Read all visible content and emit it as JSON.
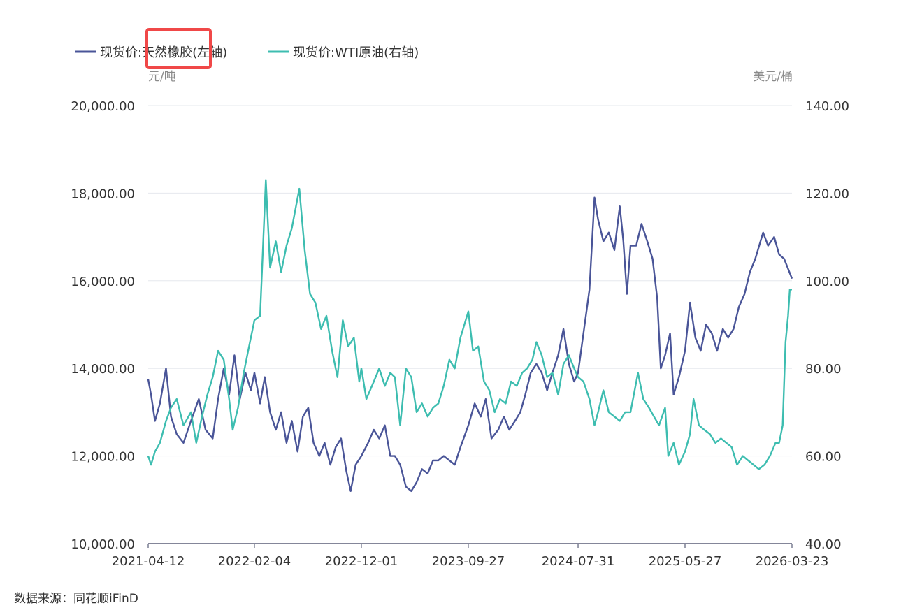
{
  "chart_data": {
    "type": "line",
    "legend": {
      "placement": "top-left",
      "items": [
        {
          "label": "现货价:天然橡胶(左轴)",
          "color": "#4a5598"
        },
        {
          "label": "现货价:WTI原油(右轴)",
          "color": "#3dbdb0"
        }
      ]
    },
    "highlight_color": "#f04848",
    "left_axis": {
      "unit": "元/吨",
      "ylim": [
        10000,
        20000
      ],
      "ticks": [
        "10,000.00",
        "12,000.00",
        "14,000.00",
        "16,000.00",
        "18,000.00",
        "20,000.00"
      ]
    },
    "right_axis": {
      "unit": "美元/桶",
      "ylim": [
        40,
        140
      ],
      "ticks": [
        "40.00",
        "60.00",
        "80.00",
        "100.00",
        "120.00",
        "140.00"
      ]
    },
    "x_ticks": [
      "2021-04-12",
      "2022-02-04",
      "2022-12-01",
      "2023-09-27",
      "2024-07-31",
      "2025-05-27",
      "2026-03-23"
    ],
    "grid": true,
    "series": [
      {
        "name": "现货价:天然橡胶(左轴)",
        "axis": "left",
        "color": "#4a5598",
        "points": [
          [
            "2021-04-12",
            13750
          ],
          [
            "2021-04-20",
            13400
          ],
          [
            "2021-05-01",
            12800
          ],
          [
            "2021-05-15",
            13200
          ],
          [
            "2021-06-01",
            14000
          ],
          [
            "2021-06-15",
            12900
          ],
          [
            "2021-07-01",
            12500
          ],
          [
            "2021-07-20",
            12300
          ],
          [
            "2021-08-10",
            12800
          ],
          [
            "2021-09-01",
            13300
          ],
          [
            "2021-09-20",
            12600
          ],
          [
            "2021-10-10",
            12400
          ],
          [
            "2021-10-25",
            13300
          ],
          [
            "2021-11-10",
            14000
          ],
          [
            "2021-11-25",
            13400
          ],
          [
            "2021-12-10",
            14300
          ],
          [
            "2021-12-25",
            13300
          ],
          [
            "2022-01-10",
            13900
          ],
          [
            "2022-01-25",
            13500
          ],
          [
            "2022-02-04",
            13900
          ],
          [
            "2022-02-20",
            13200
          ],
          [
            "2022-03-05",
            13800
          ],
          [
            "2022-03-20",
            13000
          ],
          [
            "2022-04-05",
            12600
          ],
          [
            "2022-04-20",
            13000
          ],
          [
            "2022-05-05",
            12300
          ],
          [
            "2022-05-20",
            12800
          ],
          [
            "2022-06-05",
            12100
          ],
          [
            "2022-06-20",
            12900
          ],
          [
            "2022-07-05",
            13100
          ],
          [
            "2022-07-20",
            12300
          ],
          [
            "2022-08-05",
            12000
          ],
          [
            "2022-08-20",
            12300
          ],
          [
            "2022-09-05",
            11800
          ],
          [
            "2022-09-20",
            12200
          ],
          [
            "2022-10-05",
            12400
          ],
          [
            "2022-10-20",
            11650
          ],
          [
            "2022-11-01",
            11200
          ],
          [
            "2022-11-15",
            11800
          ],
          [
            "2022-12-01",
            12000
          ],
          [
            "2022-12-20",
            12300
          ],
          [
            "2023-01-05",
            12600
          ],
          [
            "2023-01-20",
            12400
          ],
          [
            "2023-02-05",
            12700
          ],
          [
            "2023-02-20",
            12000
          ],
          [
            "2023-03-05",
            12000
          ],
          [
            "2023-03-20",
            11800
          ],
          [
            "2023-04-05",
            11300
          ],
          [
            "2023-04-20",
            11200
          ],
          [
            "2023-05-05",
            11400
          ],
          [
            "2023-05-20",
            11700
          ],
          [
            "2023-06-05",
            11600
          ],
          [
            "2023-06-20",
            11900
          ],
          [
            "2023-07-05",
            11900
          ],
          [
            "2023-07-20",
            12000
          ],
          [
            "2023-08-05",
            11900
          ],
          [
            "2023-08-20",
            11800
          ],
          [
            "2023-09-05",
            12200
          ],
          [
            "2023-09-27",
            12700
          ],
          [
            "2023-10-15",
            13200
          ],
          [
            "2023-11-01",
            12900
          ],
          [
            "2023-11-15",
            13300
          ],
          [
            "2023-12-01",
            12400
          ],
          [
            "2023-12-20",
            12600
          ],
          [
            "2024-01-05",
            12900
          ],
          [
            "2024-01-20",
            12600
          ],
          [
            "2024-02-05",
            12800
          ],
          [
            "2024-02-20",
            13000
          ],
          [
            "2024-03-05",
            13400
          ],
          [
            "2024-03-20",
            13900
          ],
          [
            "2024-04-05",
            14100
          ],
          [
            "2024-04-20",
            13900
          ],
          [
            "2024-05-05",
            13500
          ],
          [
            "2024-05-20",
            13900
          ],
          [
            "2024-06-05",
            14300
          ],
          [
            "2024-06-20",
            14900
          ],
          [
            "2024-07-05",
            14100
          ],
          [
            "2024-07-20",
            13700
          ],
          [
            "2024-07-31",
            13900
          ],
          [
            "2024-08-15",
            14800
          ],
          [
            "2024-09-01",
            15800
          ],
          [
            "2024-09-15",
            17900
          ],
          [
            "2024-09-25",
            17400
          ],
          [
            "2024-10-10",
            16900
          ],
          [
            "2024-10-25",
            17100
          ],
          [
            "2024-11-10",
            16700
          ],
          [
            "2024-11-25",
            17700
          ],
          [
            "2024-12-05",
            16900
          ],
          [
            "2024-12-15",
            15700
          ],
          [
            "2024-12-25",
            16800
          ],
          [
            "2025-01-10",
            16800
          ],
          [
            "2025-01-25",
            17300
          ],
          [
            "2025-02-10",
            16900
          ],
          [
            "2025-02-25",
            16500
          ],
          [
            "2025-03-10",
            15600
          ],
          [
            "2025-03-20",
            14000
          ],
          [
            "2025-04-01",
            14300
          ],
          [
            "2025-04-15",
            14800
          ],
          [
            "2025-04-25",
            13400
          ],
          [
            "2025-05-10",
            13800
          ],
          [
            "2025-05-27",
            14400
          ],
          [
            "2025-06-10",
            15500
          ],
          [
            "2025-06-25",
            14700
          ],
          [
            "2025-07-10",
            14400
          ],
          [
            "2025-07-25",
            15000
          ],
          [
            "2025-08-10",
            14800
          ],
          [
            "2025-08-25",
            14400
          ],
          [
            "2025-09-10",
            14900
          ],
          [
            "2025-09-25",
            14700
          ],
          [
            "2025-10-10",
            14900
          ],
          [
            "2025-10-25",
            15400
          ],
          [
            "2025-11-10",
            15700
          ],
          [
            "2025-11-25",
            16200
          ],
          [
            "2025-12-10",
            16500
          ],
          [
            "2026-01-01",
            17100
          ],
          [
            "2026-01-15",
            16800
          ],
          [
            "2026-02-01",
            17000
          ],
          [
            "2026-02-15",
            16600
          ],
          [
            "2026-03-01",
            16500
          ],
          [
            "2026-03-23",
            16050
          ]
        ]
      },
      {
        "name": "现货价:WTI原油(右轴)",
        "axis": "right",
        "color": "#3dbdb0",
        "points": [
          [
            "2021-04-12",
            60
          ],
          [
            "2021-04-20",
            58
          ],
          [
            "2021-05-01",
            61
          ],
          [
            "2021-05-15",
            63
          ],
          [
            "2021-06-01",
            68
          ],
          [
            "2021-06-15",
            71
          ],
          [
            "2021-07-01",
            73
          ],
          [
            "2021-07-20",
            67
          ],
          [
            "2021-08-10",
            70
          ],
          [
            "2021-08-25",
            63
          ],
          [
            "2021-09-10",
            69
          ],
          [
            "2021-09-25",
            74
          ],
          [
            "2021-10-10",
            78
          ],
          [
            "2021-10-25",
            84
          ],
          [
            "2021-11-10",
            82
          ],
          [
            "2021-11-25",
            73
          ],
          [
            "2021-12-05",
            66
          ],
          [
            "2021-12-20",
            71
          ],
          [
            "2022-01-05",
            79
          ],
          [
            "2022-01-20",
            85
          ],
          [
            "2022-02-04",
            91
          ],
          [
            "2022-02-20",
            92
          ],
          [
            "2022-03-08",
            123
          ],
          [
            "2022-03-20",
            103
          ],
          [
            "2022-04-05",
            109
          ],
          [
            "2022-04-20",
            102
          ],
          [
            "2022-05-05",
            108
          ],
          [
            "2022-05-20",
            112
          ],
          [
            "2022-06-10",
            121
          ],
          [
            "2022-06-25",
            107
          ],
          [
            "2022-07-10",
            97
          ],
          [
            "2022-07-25",
            95
          ],
          [
            "2022-08-10",
            89
          ],
          [
            "2022-08-25",
            92
          ],
          [
            "2022-09-10",
            84
          ],
          [
            "2022-09-25",
            78
          ],
          [
            "2022-10-10",
            91
          ],
          [
            "2022-10-25",
            85
          ],
          [
            "2022-11-10",
            87
          ],
          [
            "2022-11-25",
            77
          ],
          [
            "2022-12-01",
            80
          ],
          [
            "2022-12-15",
            73
          ],
          [
            "2023-01-05",
            77
          ],
          [
            "2023-01-20",
            80
          ],
          [
            "2023-02-05",
            76
          ],
          [
            "2023-02-20",
            79
          ],
          [
            "2023-03-05",
            78
          ],
          [
            "2023-03-20",
            67
          ],
          [
            "2023-04-05",
            80
          ],
          [
            "2023-04-20",
            78
          ],
          [
            "2023-05-05",
            70
          ],
          [
            "2023-05-20",
            72
          ],
          [
            "2023-06-05",
            69
          ],
          [
            "2023-06-20",
            71
          ],
          [
            "2023-07-05",
            72
          ],
          [
            "2023-07-20",
            76
          ],
          [
            "2023-08-05",
            82
          ],
          [
            "2023-08-20",
            80
          ],
          [
            "2023-09-05",
            87
          ],
          [
            "2023-09-27",
            93
          ],
          [
            "2023-10-10",
            84
          ],
          [
            "2023-10-25",
            85
          ],
          [
            "2023-11-10",
            77
          ],
          [
            "2023-11-25",
            75
          ],
          [
            "2023-12-10",
            70
          ],
          [
            "2023-12-25",
            73
          ],
          [
            "2024-01-10",
            72
          ],
          [
            "2024-01-25",
            77
          ],
          [
            "2024-02-10",
            76
          ],
          [
            "2024-02-25",
            79
          ],
          [
            "2024-03-10",
            80
          ],
          [
            "2024-03-25",
            82
          ],
          [
            "2024-04-05",
            86
          ],
          [
            "2024-04-20",
            83
          ],
          [
            "2024-05-05",
            78
          ],
          [
            "2024-05-20",
            79
          ],
          [
            "2024-06-05",
            74
          ],
          [
            "2024-06-20",
            81
          ],
          [
            "2024-07-05",
            83
          ],
          [
            "2024-07-20",
            80
          ],
          [
            "2024-07-31",
            78
          ],
          [
            "2024-08-15",
            77
          ],
          [
            "2024-09-01",
            73
          ],
          [
            "2024-09-15",
            67
          ],
          [
            "2024-09-25",
            70
          ],
          [
            "2024-10-10",
            75
          ],
          [
            "2024-10-25",
            70
          ],
          [
            "2024-11-10",
            69
          ],
          [
            "2024-11-25",
            68
          ],
          [
            "2024-12-10",
            70
          ],
          [
            "2024-12-25",
            70
          ],
          [
            "2025-01-15",
            79
          ],
          [
            "2025-01-30",
            73
          ],
          [
            "2025-02-15",
            71
          ],
          [
            "2025-03-01",
            69
          ],
          [
            "2025-03-15",
            67
          ],
          [
            "2025-04-01",
            71
          ],
          [
            "2025-04-10",
            60
          ],
          [
            "2025-04-25",
            63
          ],
          [
            "2025-05-10",
            58
          ],
          [
            "2025-05-27",
            61
          ],
          [
            "2025-06-10",
            65
          ],
          [
            "2025-06-20",
            73
          ],
          [
            "2025-07-05",
            67
          ],
          [
            "2025-07-20",
            66
          ],
          [
            "2025-08-05",
            65
          ],
          [
            "2025-08-20",
            63
          ],
          [
            "2025-09-05",
            64
          ],
          [
            "2025-09-20",
            63
          ],
          [
            "2025-10-05",
            62
          ],
          [
            "2025-10-20",
            58
          ],
          [
            "2025-11-05",
            60
          ],
          [
            "2025-11-20",
            59
          ],
          [
            "2025-12-05",
            58
          ],
          [
            "2025-12-20",
            57
          ],
          [
            "2026-01-05",
            58
          ],
          [
            "2026-01-20",
            60
          ],
          [
            "2026-02-05",
            63
          ],
          [
            "2026-02-15",
            63
          ],
          [
            "2026-02-25",
            67
          ],
          [
            "2026-03-05",
            86
          ],
          [
            "2026-03-12",
            92
          ],
          [
            "2026-03-17",
            98
          ],
          [
            "2026-03-23",
            98
          ]
        ]
      }
    ]
  },
  "source": "数据来源：同花顺iFinD"
}
